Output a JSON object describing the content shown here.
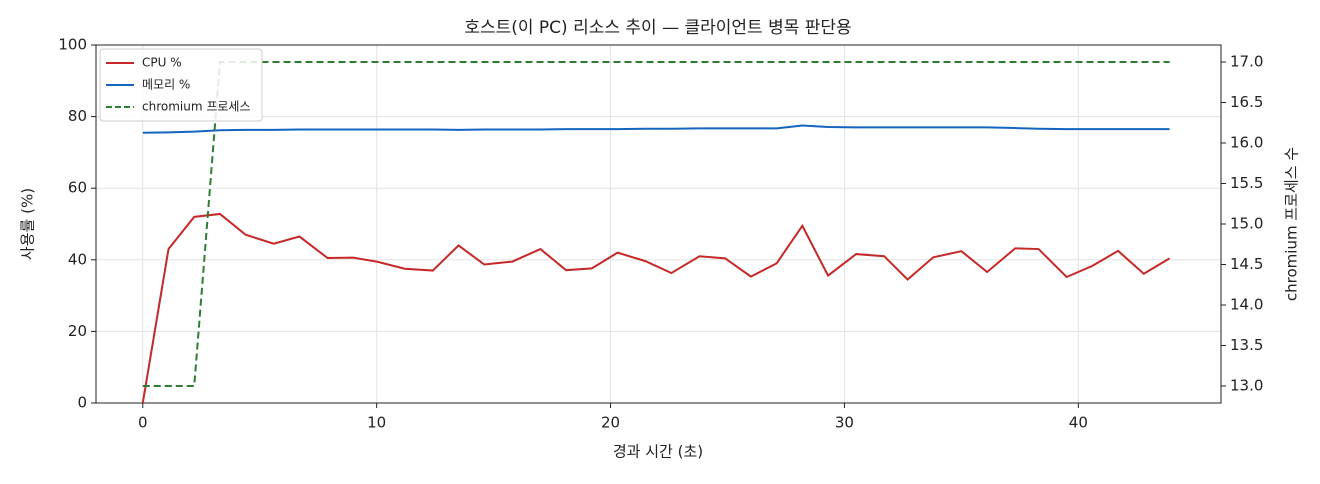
{
  "chart_data": {
    "type": "line",
    "title": "호스트(이 PC) 리소스 추이 — 클라이언트 병목 판단용",
    "xlabel": "경과 시간 (초)",
    "ylabel": "사용률 (%)",
    "y2label": "chromium 프로세스 수",
    "x": [
      0,
      1.1,
      2.2,
      3.3,
      4.4,
      5.6,
      6.7,
      7.9,
      9.0,
      10.0,
      11.2,
      12.4,
      13.5,
      14.6,
      15.8,
      17.0,
      18.1,
      19.2,
      20.3,
      21.5,
      22.6,
      23.8,
      24.9,
      26.0,
      27.1,
      28.2,
      29.3,
      30.5,
      31.7,
      32.7,
      33.8,
      35.0,
      36.1,
      37.3,
      38.3,
      39.5,
      40.6,
      41.7,
      42.8,
      43.9
    ],
    "series": [
      {
        "name": "CPU %",
        "color": "#c62828",
        "linestyle": "solid",
        "values": [
          0,
          43,
          52,
          52.8,
          47,
          44.5,
          46.5,
          40.5,
          40.6,
          39.5,
          37.5,
          37,
          44,
          38.7,
          39.5,
          43,
          37.1,
          37.6,
          42,
          39.6,
          36.3,
          41,
          40.4,
          35.3,
          39,
          49.5,
          35.6,
          41.6,
          41,
          34.5,
          40.7,
          42.4,
          36.6,
          43.2,
          43,
          35.2,
          38.3,
          42.5,
          36.1,
          40.4
        ]
      },
      {
        "name": "메모리 %",
        "color": "#1565c0",
        "linestyle": "solid",
        "values": [
          75.5,
          75.6,
          75.8,
          76.2,
          76.3,
          76.3,
          76.4,
          76.4,
          76.4,
          76.4,
          76.4,
          76.4,
          76.3,
          76.4,
          76.4,
          76.4,
          76.5,
          76.5,
          76.5,
          76.6,
          76.6,
          76.7,
          76.7,
          76.7,
          76.7,
          77.5,
          77.1,
          77.0,
          77.0,
          77.0,
          77.0,
          77.0,
          77.0,
          76.8,
          76.6,
          76.5,
          76.5,
          76.5,
          76.5,
          76.5
        ]
      },
      {
        "name": "chromium 프로세스",
        "color": "#2e7d32",
        "linestyle": "dashed",
        "axis": "y2",
        "values": [
          13,
          13,
          13,
          17,
          17,
          17,
          17,
          17,
          17,
          17,
          17,
          17,
          17,
          17,
          17,
          17,
          17,
          17,
          17,
          17,
          17,
          17,
          17,
          17,
          17,
          17,
          17,
          17,
          17,
          17,
          17,
          17,
          17,
          17,
          17,
          17,
          17,
          17,
          17,
          17
        ]
      }
    ],
    "xlim": [
      -2.0,
      46.1
    ],
    "xticks": [
      0,
      10,
      20,
      30,
      40
    ],
    "ylim": [
      0,
      100
    ],
    "yticks": [
      0,
      20,
      40,
      60,
      80,
      100
    ],
    "y2lim": [
      12.79,
      17.21
    ],
    "y2ticks": [
      {
        "value": 13,
        "label": "13.0"
      },
      13.5,
      {
        "value": 14,
        "label": "14.0"
      },
      14.5,
      {
        "value": 15,
        "label": "15.0"
      },
      15.5,
      {
        "value": 16,
        "label": "16.0"
      },
      16.5,
      {
        "value": 17,
        "label": "17.0"
      }
    ],
    "grid": true,
    "legend": "upper left"
  }
}
